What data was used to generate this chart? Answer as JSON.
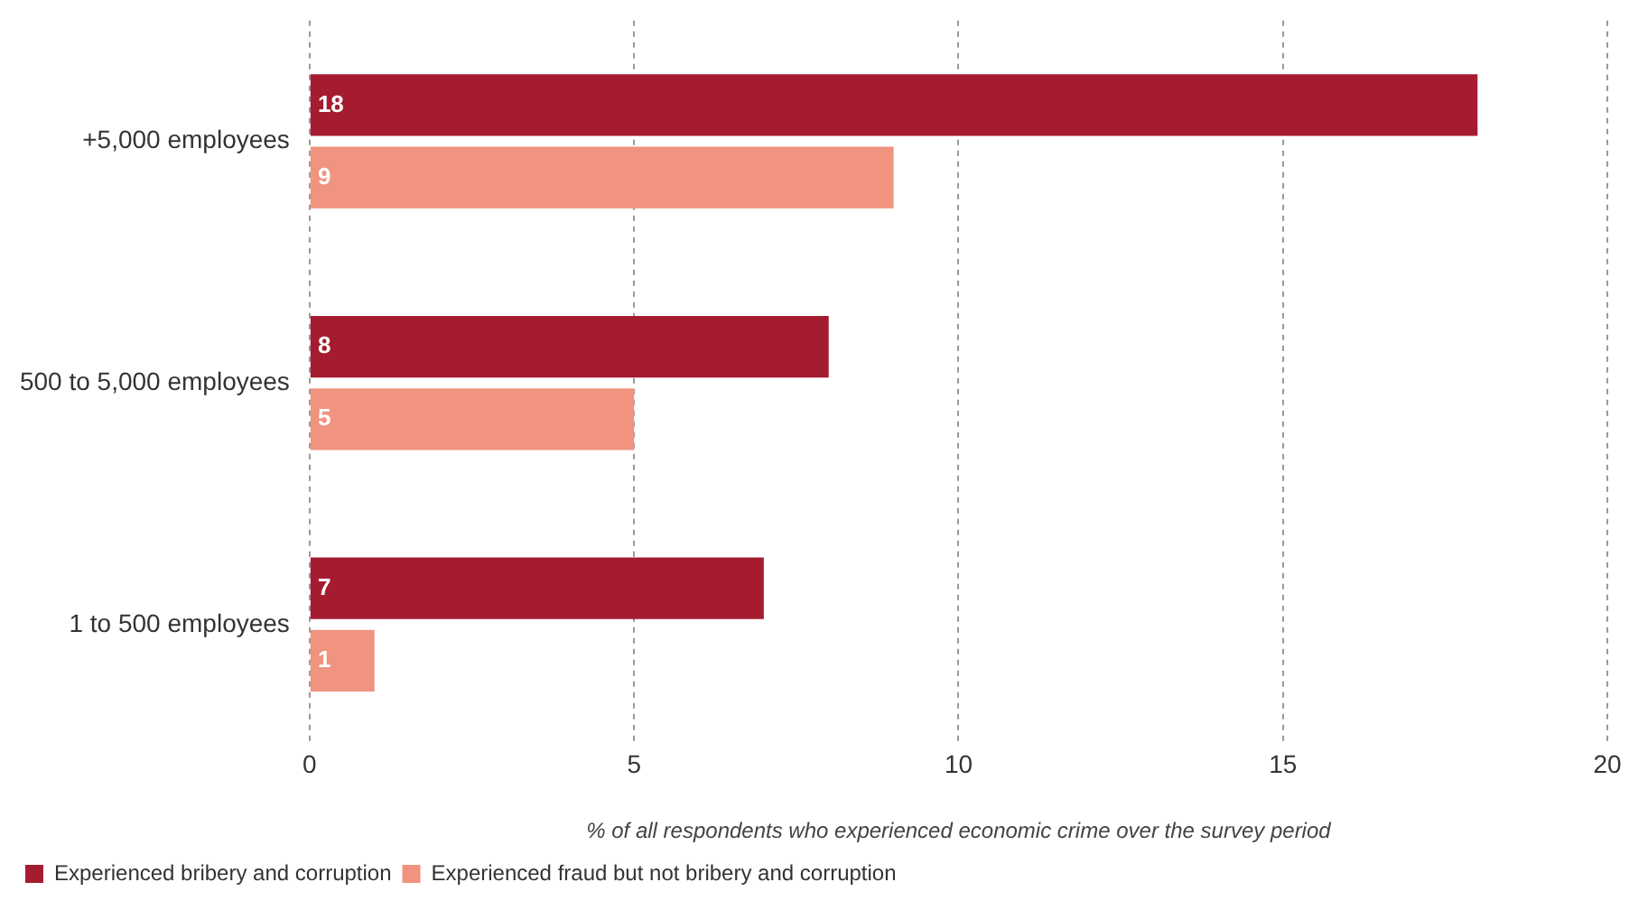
{
  "chart_data": {
    "type": "bar",
    "orientation": "horizontal",
    "categories": [
      "+5,000 employees",
      "500 to 5,000 employees",
      "1 to 500 employees"
    ],
    "series": [
      {
        "name": "Experienced bribery and corruption",
        "color": "#a51c30",
        "values": [
          18,
          8,
          7
        ]
      },
      {
        "name": "Experienced fraud but not bribery and corruption",
        "color": "#f0937f",
        "values": [
          9,
          5,
          1
        ]
      }
    ],
    "xlim": [
      0,
      20
    ],
    "xticks": [
      0,
      5,
      10,
      15,
      20
    ],
    "xlabel": "% of all respondents who experienced economic crime over the survey period",
    "grid": "x",
    "legend": "bottom left",
    "data_labels": true
  }
}
